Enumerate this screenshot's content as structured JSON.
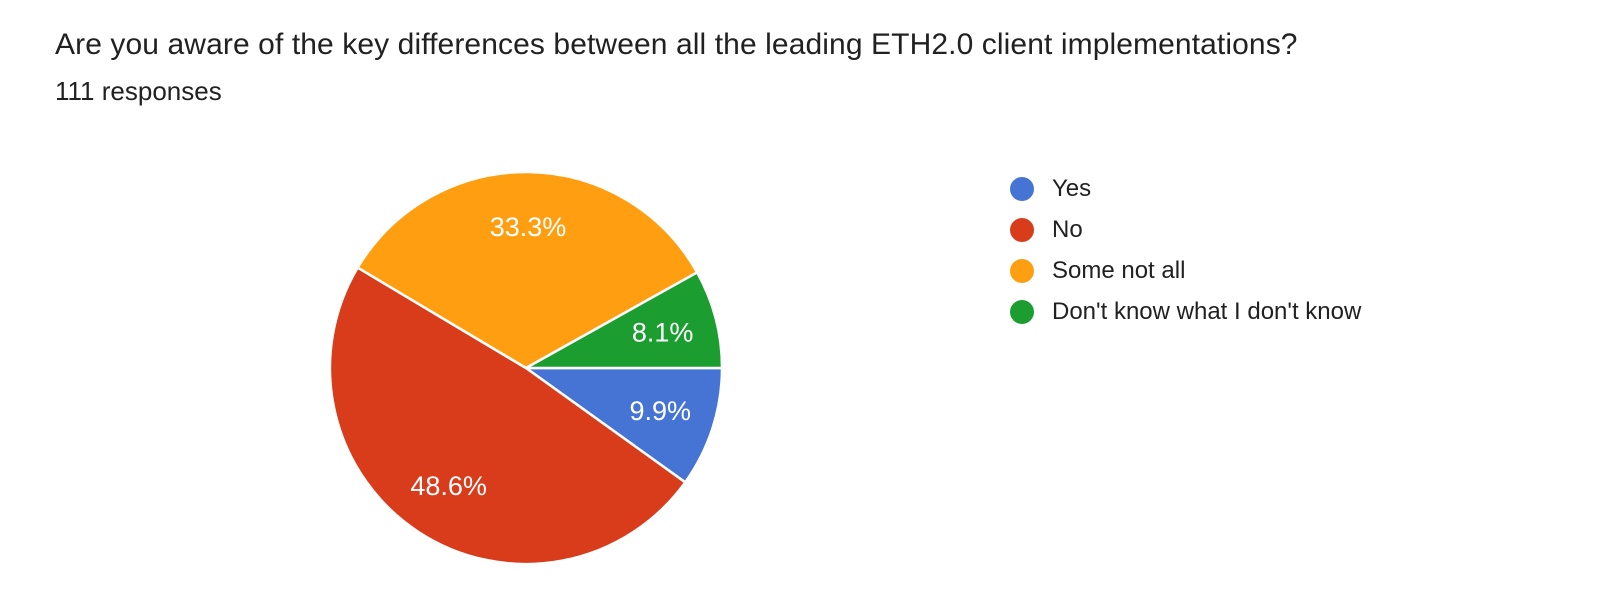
{
  "header": {
    "title": "Are you aware of the key differences between all the leading ETH2.0 client implementations?",
    "responses_label": "111 responses"
  },
  "chart_data": {
    "type": "pie",
    "title": "Are you aware of the key differences between all the leading ETH2.0 client implementations?",
    "subtitle": "111 responses",
    "start_angle_deg": 0,
    "direction": "clockwise",
    "legend_position": "right",
    "slice_label_color": "#ffffff",
    "slices": [
      {
        "label": "Yes",
        "percent": 9.9,
        "display_percent": "9.9%",
        "color": "#4674d4"
      },
      {
        "label": "No",
        "percent": 48.6,
        "display_percent": "48.6%",
        "color": "#d93c1b"
      },
      {
        "label": "Some not all",
        "percent": 33.3,
        "display_percent": "33.3%",
        "color": "#ff9e11"
      },
      {
        "label": "Don't know what I don't know",
        "percent": 8.1,
        "display_percent": "8.1%",
        "color": "#1b9e2f"
      }
    ]
  }
}
